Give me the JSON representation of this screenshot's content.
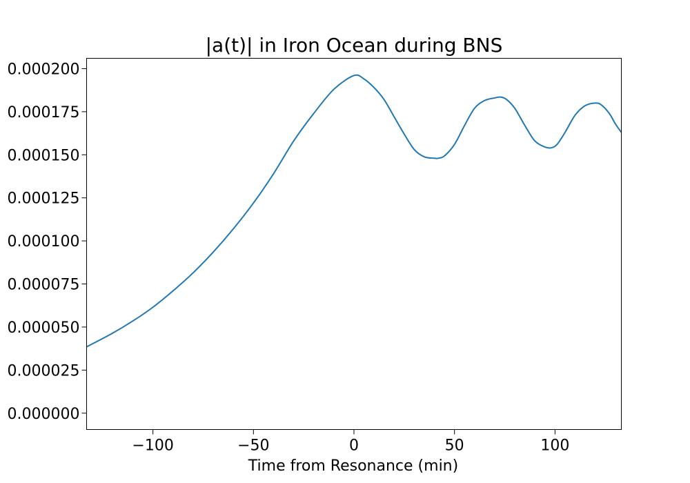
{
  "chart_data": {
    "type": "line",
    "title": "|a(t)| in Iron Ocean during BNS",
    "xlabel": "Time from Resonance (min)",
    "ylabel": "",
    "xlim": [
      -133,
      133
    ],
    "ylim": [
      -9.5e-06,
      0.000206
    ],
    "x_ticks": [
      {
        "value": -100,
        "label": "−100"
      },
      {
        "value": -50,
        "label": "−50"
      },
      {
        "value": 0,
        "label": "0"
      },
      {
        "value": 50,
        "label": "50"
      },
      {
        "value": 100,
        "label": "100"
      }
    ],
    "y_ticks": [
      {
        "value": 0.0,
        "label": "0.000000"
      },
      {
        "value": 2.5e-05,
        "label": "0.000025"
      },
      {
        "value": 5e-05,
        "label": "0.000050"
      },
      {
        "value": 7.5e-05,
        "label": "0.000075"
      },
      {
        "value": 0.0001,
        "label": "0.000100"
      },
      {
        "value": 0.000125,
        "label": "0.000125"
      },
      {
        "value": 0.00015,
        "label": "0.000150"
      },
      {
        "value": 0.000175,
        "label": "0.000175"
      },
      {
        "value": 0.0002,
        "label": "0.000200"
      }
    ],
    "grid": false,
    "series": [
      {
        "color": "#1f77b4",
        "x": [
          -133,
          -120,
          -110,
          -100,
          -90,
          -80,
          -70,
          -60,
          -50,
          -40,
          -30,
          -20,
          -10,
          0,
          5,
          10,
          15,
          20,
          25,
          30,
          35,
          40,
          42,
          45,
          50,
          55,
          60,
          65,
          70,
          73,
          76,
          80,
          85,
          90,
          95,
          98,
          101,
          105,
          110,
          115,
          120,
          123,
          127,
          130,
          133
        ],
        "y": [
          3.85e-05,
          4.65e-05,
          5.35e-05,
          6.15e-05,
          7.1e-05,
          8.15e-05,
          9.35e-05,
          0.000107,
          0.000122,
          0.000139,
          0.000158,
          0.000174,
          0.000188,
          0.000196,
          0.000194,
          0.000189,
          0.000182,
          0.000172,
          0.000162,
          0.000153,
          0.0001488,
          0.000148,
          0.000148,
          0.0001493,
          0.000156,
          0.000167,
          0.000177,
          0.0001815,
          0.000183,
          0.0001835,
          0.000182,
          0.000177,
          0.000167,
          0.000158,
          0.0001545,
          0.000154,
          0.000156,
          0.000163,
          0.000173,
          0.0001785,
          0.00018,
          0.000179,
          0.000174,
          0.000168,
          0.000163
        ]
      }
    ]
  }
}
